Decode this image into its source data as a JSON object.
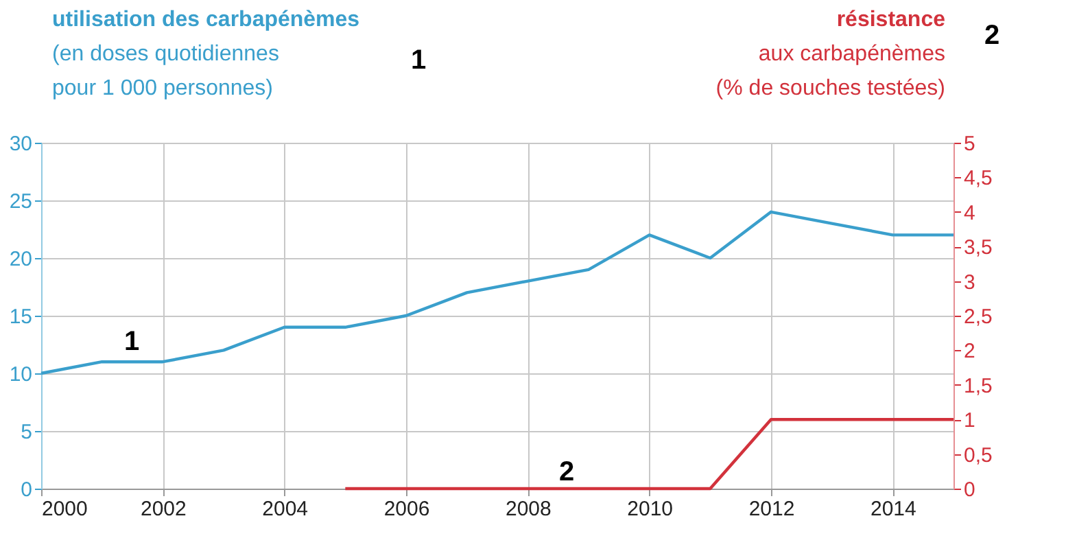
{
  "chart_data": {
    "type": "line",
    "ylabel": "utilisation des carbapénèmes\n(en doses quotidiennes\npour 1 000 personnes)",
    "y2label": "résistance\naux carbapénèmes\n(% de souches testées)",
    "xlim": [
      2000,
      2015
    ],
    "xticks": [
      2000,
      2002,
      2004,
      2006,
      2008,
      2010,
      2012,
      2014
    ],
    "ylim": [
      0,
      30
    ],
    "yticks": [
      0,
      5,
      10,
      15,
      20,
      25,
      30
    ],
    "y2lim": [
      0,
      5
    ],
    "y2ticks": [
      0,
      {
        "value": 0.5,
        "label": "0,5"
      },
      1,
      {
        "value": 1.5,
        "label": "1,5"
      },
      2,
      {
        "value": 2.5,
        "label": "2,5"
      },
      3,
      {
        "value": 3.5,
        "label": "3,5"
      },
      4,
      {
        "value": 4.5,
        "label": "4,5"
      },
      5
    ],
    "grid": true,
    "series": [
      {
        "color": "#3a9fcc",
        "x": [
          2000,
          2001,
          2002,
          2003,
          2004,
          2005,
          2006,
          2007,
          2008,
          2009,
          2010,
          2011,
          2012,
          2013,
          2014,
          2015
        ],
        "values": [
          10,
          11,
          11,
          12,
          14,
          14,
          15,
          17,
          18,
          19,
          22,
          20,
          24,
          23,
          22,
          22
        ]
      },
      {
        "color": "#d2323c",
        "axis": "y2",
        "x": [
          2005,
          2006,
          2007,
          2008,
          2009,
          2010,
          2011,
          2012,
          2013,
          2014,
          2015
        ],
        "values": [
          0,
          0,
          0,
          0,
          0,
          0,
          0,
          1,
          1,
          1,
          1
        ]
      }
    ],
    "annotations": [
      "1",
      "2",
      "1",
      "2"
    ]
  }
}
